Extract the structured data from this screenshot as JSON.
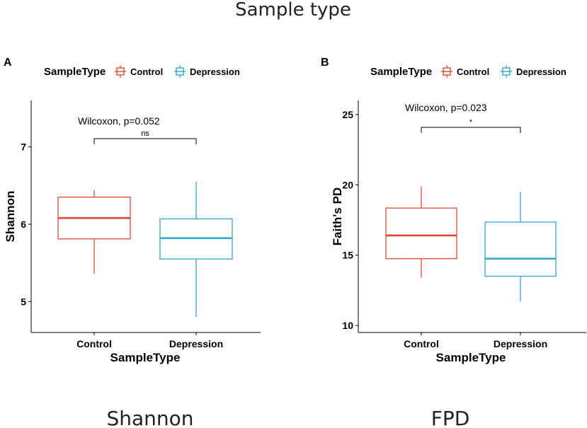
{
  "figure": {
    "title": "Sample type",
    "captions": [
      "Shannon",
      "FPD"
    ]
  },
  "legend": {
    "title": "SampleType",
    "entries": [
      {
        "label": "Control",
        "color": "#E24A33"
      },
      {
        "label": "Depression",
        "color": "#2AA9CF"
      }
    ]
  },
  "chart_data": [
    {
      "type": "box",
      "panel_label": "A",
      "title": "",
      "xlabel": "SampleType",
      "ylabel": "Shannon",
      "ylim": [
        4.6,
        7.6
      ],
      "yticks": [
        5,
        6,
        7
      ],
      "categories": [
        "Control",
        "Depression"
      ],
      "series": [
        {
          "name": "Control",
          "color": "#E24A33",
          "whisker_low": 5.36,
          "q1": 5.81,
          "median": 6.08,
          "q3": 6.35,
          "whisker_high": 6.44
        },
        {
          "name": "Depression",
          "color": "#2AA9CF",
          "whisker_low": 4.8,
          "q1": 5.55,
          "median": 5.82,
          "q3": 6.07,
          "whisker_high": 6.55
        }
      ],
      "annotation": {
        "test": "Wilcoxon, p=0.052",
        "significance": "ns"
      }
    },
    {
      "type": "box",
      "panel_label": "B",
      "title": "",
      "xlabel": "SampleType",
      "ylabel": "Faith's PD",
      "ylim": [
        9.5,
        26
      ],
      "yticks": [
        10,
        15,
        20,
        25
      ],
      "categories": [
        "Control",
        "Depression"
      ],
      "series": [
        {
          "name": "Control",
          "color": "#E24A33",
          "whisker_low": 13.4,
          "q1": 14.75,
          "median": 16.4,
          "q3": 18.35,
          "whisker_high": 19.9
        },
        {
          "name": "Depression",
          "color": "#2AA9CF",
          "whisker_low": 11.7,
          "q1": 13.5,
          "median": 14.75,
          "q3": 17.35,
          "whisker_high": 19.5
        }
      ],
      "annotation": {
        "test": "Wilcoxon, p=0.023",
        "significance": "*"
      }
    }
  ]
}
